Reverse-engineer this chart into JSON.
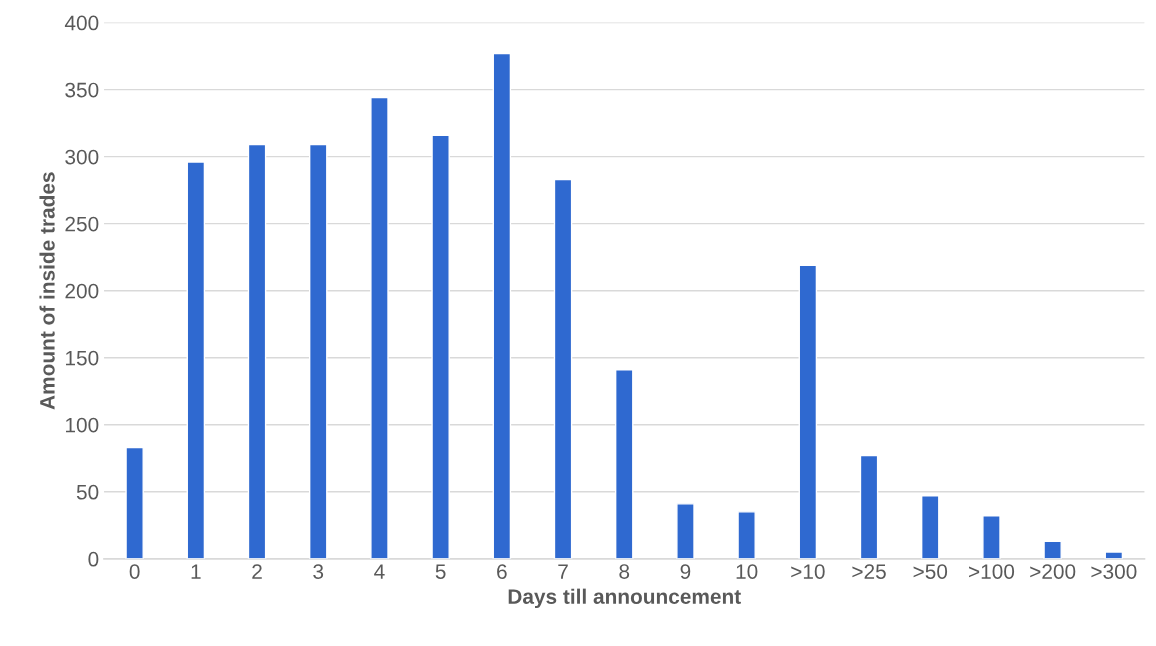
{
  "chart_data": {
    "type": "bar",
    "xlabel": "Days till announcement",
    "ylabel": "Amount of inside trades",
    "categories": [
      "0",
      "1",
      "2",
      "3",
      "4",
      "5",
      "6",
      "7",
      "8",
      "9",
      "10",
      ">10",
      ">25",
      ">50",
      ">100",
      ">200",
      ">300"
    ],
    "values": [
      83,
      296,
      309,
      309,
      344,
      316,
      377,
      283,
      141,
      41,
      35,
      219,
      77,
      47,
      32,
      13,
      5
    ],
    "color": "#2f69d0",
    "ylim": [
      0,
      400
    ],
    "yticks": [
      0,
      50,
      100,
      150,
      200,
      250,
      300,
      350,
      400
    ],
    "grid": "y"
  }
}
